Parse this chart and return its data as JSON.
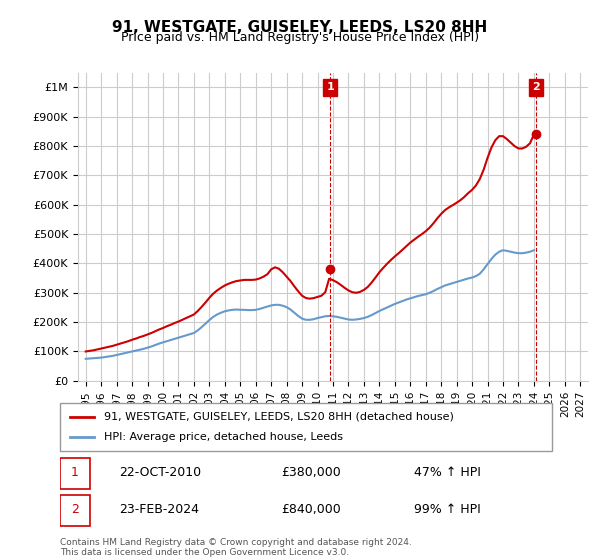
{
  "title": "91, WESTGATE, GUISELEY, LEEDS, LS20 8HH",
  "subtitle": "Price paid vs. HM Land Registry's House Price Index (HPI)",
  "hpi_label": "HPI: Average price, detached house, Leeds",
  "property_label": "91, WESTGATE, GUISELEY, LEEDS, LS20 8HH (detached house)",
  "annotation1": {
    "num": "1",
    "date": "22-OCT-2010",
    "price": "£380,000",
    "pct": "47% ↑ HPI",
    "x": 2010.81
  },
  "annotation2": {
    "num": "2",
    "date": "23-FEB-2024",
    "price": "£840,000",
    "pct": "99% ↑ HPI",
    "x": 2024.14
  },
  "ylabel_ticks": [
    "£0",
    "£100K",
    "£200K",
    "£300K",
    "£400K",
    "£500K",
    "£600K",
    "£700K",
    "£800K",
    "£900K",
    "£1M"
  ],
  "ytick_values": [
    0,
    100000,
    200000,
    300000,
    400000,
    500000,
    600000,
    700000,
    800000,
    900000,
    1000000
  ],
  "ylim": [
    0,
    1050000
  ],
  "xlim": [
    1994.5,
    2027.5
  ],
  "xtick_years": [
    1995,
    1996,
    1997,
    1998,
    1999,
    2000,
    2001,
    2002,
    2003,
    2004,
    2005,
    2006,
    2007,
    2008,
    2009,
    2010,
    2011,
    2012,
    2013,
    2014,
    2015,
    2016,
    2017,
    2018,
    2019,
    2020,
    2021,
    2022,
    2023,
    2024,
    2025,
    2026,
    2027
  ],
  "property_color": "#cc0000",
  "hpi_color": "#6699cc",
  "marker_color": "#cc0000",
  "annotation_box_color": "#cc0000",
  "grid_color": "#cccccc",
  "background_color": "#ffffff",
  "footnote": "Contains HM Land Registry data © Crown copyright and database right 2024.\nThis data is licensed under the Open Government Licence v3.0.",
  "hpi_data_x": [
    1995.0,
    1995.25,
    1995.5,
    1995.75,
    1996.0,
    1996.25,
    1996.5,
    1996.75,
    1997.0,
    1997.25,
    1997.5,
    1997.75,
    1998.0,
    1998.25,
    1998.5,
    1998.75,
    1999.0,
    1999.25,
    1999.5,
    1999.75,
    2000.0,
    2000.25,
    2000.5,
    2000.75,
    2001.0,
    2001.25,
    2001.5,
    2001.75,
    2002.0,
    2002.25,
    2002.5,
    2002.75,
    2003.0,
    2003.25,
    2003.5,
    2003.75,
    2004.0,
    2004.25,
    2004.5,
    2004.75,
    2005.0,
    2005.25,
    2005.5,
    2005.75,
    2006.0,
    2006.25,
    2006.5,
    2006.75,
    2007.0,
    2007.25,
    2007.5,
    2007.75,
    2008.0,
    2008.25,
    2008.5,
    2008.75,
    2009.0,
    2009.25,
    2009.5,
    2009.75,
    2010.0,
    2010.25,
    2010.5,
    2010.75,
    2011.0,
    2011.25,
    2011.5,
    2011.75,
    2012.0,
    2012.25,
    2012.5,
    2012.75,
    2013.0,
    2013.25,
    2013.5,
    2013.75,
    2014.0,
    2014.25,
    2014.5,
    2014.75,
    2015.0,
    2015.25,
    2015.5,
    2015.75,
    2016.0,
    2016.25,
    2016.5,
    2016.75,
    2017.0,
    2017.25,
    2017.5,
    2017.75,
    2018.0,
    2018.25,
    2018.5,
    2018.75,
    2019.0,
    2019.25,
    2019.5,
    2019.75,
    2020.0,
    2020.25,
    2020.5,
    2020.75,
    2021.0,
    2021.25,
    2021.5,
    2021.75,
    2022.0,
    2022.25,
    2022.5,
    2022.75,
    2023.0,
    2023.25,
    2023.5,
    2023.75,
    2024.0
  ],
  "hpi_data_y": [
    75000,
    76000,
    77000,
    78000,
    79000,
    81000,
    83000,
    85000,
    88000,
    91000,
    94000,
    97000,
    100000,
    103000,
    106000,
    109000,
    113000,
    117000,
    122000,
    127000,
    131000,
    135000,
    139000,
    143000,
    147000,
    151000,
    155000,
    159000,
    163000,
    172000,
    183000,
    195000,
    207000,
    218000,
    226000,
    232000,
    237000,
    240000,
    242000,
    243000,
    242000,
    242000,
    241000,
    241000,
    242000,
    245000,
    249000,
    253000,
    257000,
    259000,
    259000,
    256000,
    251000,
    243000,
    232000,
    221000,
    212000,
    208000,
    208000,
    210000,
    214000,
    217000,
    220000,
    221000,
    220000,
    218000,
    215000,
    212000,
    209000,
    208000,
    209000,
    211000,
    214000,
    218000,
    224000,
    231000,
    238000,
    244000,
    250000,
    256000,
    262000,
    267000,
    272000,
    277000,
    281000,
    285000,
    289000,
    292000,
    295000,
    300000,
    306000,
    313000,
    319000,
    325000,
    329000,
    333000,
    337000,
    341000,
    345000,
    349000,
    352000,
    357000,
    365000,
    380000,
    398000,
    415000,
    430000,
    440000,
    445000,
    443000,
    440000,
    437000,
    435000,
    435000,
    437000,
    440000,
    445000
  ],
  "property_data_x": [
    1995.0,
    1995.25,
    1995.5,
    1995.75,
    1996.0,
    1996.25,
    1996.5,
    1996.75,
    1997.0,
    1997.25,
    1997.5,
    1997.75,
    1998.0,
    1998.25,
    1998.5,
    1998.75,
    1999.0,
    1999.25,
    1999.5,
    1999.75,
    2000.0,
    2000.25,
    2000.5,
    2000.75,
    2001.0,
    2001.25,
    2001.5,
    2001.75,
    2002.0,
    2002.25,
    2002.5,
    2002.75,
    2003.0,
    2003.25,
    2003.5,
    2003.75,
    2004.0,
    2004.25,
    2004.5,
    2004.75,
    2005.0,
    2005.25,
    2005.5,
    2005.75,
    2006.0,
    2006.25,
    2006.5,
    2006.75,
    2007.0,
    2007.25,
    2007.5,
    2007.75,
    2008.0,
    2008.25,
    2008.5,
    2008.75,
    2009.0,
    2009.25,
    2009.5,
    2009.75,
    2010.0,
    2010.25,
    2010.5,
    2010.75,
    2011.0,
    2011.25,
    2011.5,
    2011.75,
    2012.0,
    2012.25,
    2012.5,
    2012.75,
    2013.0,
    2013.25,
    2013.5,
    2013.75,
    2014.0,
    2014.25,
    2014.5,
    2014.75,
    2015.0,
    2015.25,
    2015.5,
    2015.75,
    2016.0,
    2016.25,
    2016.5,
    2016.75,
    2017.0,
    2017.25,
    2017.5,
    2017.75,
    2018.0,
    2018.25,
    2018.5,
    2018.75,
    2019.0,
    2019.25,
    2019.5,
    2019.75,
    2020.0,
    2020.25,
    2020.5,
    2020.75,
    2021.0,
    2021.25,
    2021.5,
    2021.75,
    2022.0,
    2022.25,
    2022.5,
    2022.75,
    2023.0,
    2023.25,
    2023.5,
    2023.75,
    2024.0
  ],
  "property_data_y": [
    100000,
    102000,
    104000,
    107000,
    110000,
    113000,
    116000,
    119000,
    123000,
    127000,
    131000,
    135000,
    140000,
    144000,
    149000,
    153000,
    158000,
    163000,
    169000,
    175000,
    180000,
    186000,
    191000,
    197000,
    202000,
    208000,
    214000,
    220000,
    226000,
    238000,
    252000,
    267000,
    283000,
    297000,
    308000,
    317000,
    325000,
    331000,
    336000,
    340000,
    342000,
    344000,
    344000,
    344000,
    345000,
    349000,
    355000,
    363000,
    380000,
    387000,
    382000,
    370000,
    355000,
    340000,
    322000,
    305000,
    290000,
    282000,
    280000,
    282000,
    286000,
    290000,
    302000,
    348000,
    343000,
    336000,
    327000,
    317000,
    308000,
    302000,
    300000,
    303000,
    310000,
    320000,
    335000,
    352000,
    370000,
    385000,
    399000,
    412000,
    424000,
    435000,
    447000,
    459000,
    471000,
    481000,
    491000,
    500000,
    510000,
    522000,
    537000,
    554000,
    569000,
    582000,
    591000,
    599000,
    607000,
    616000,
    627000,
    640000,
    651000,
    666000,
    688000,
    720000,
    760000,
    795000,
    820000,
    834000,
    834000,
    824000,
    812000,
    800000,
    792000,
    792000,
    798000,
    810000,
    840000
  ]
}
